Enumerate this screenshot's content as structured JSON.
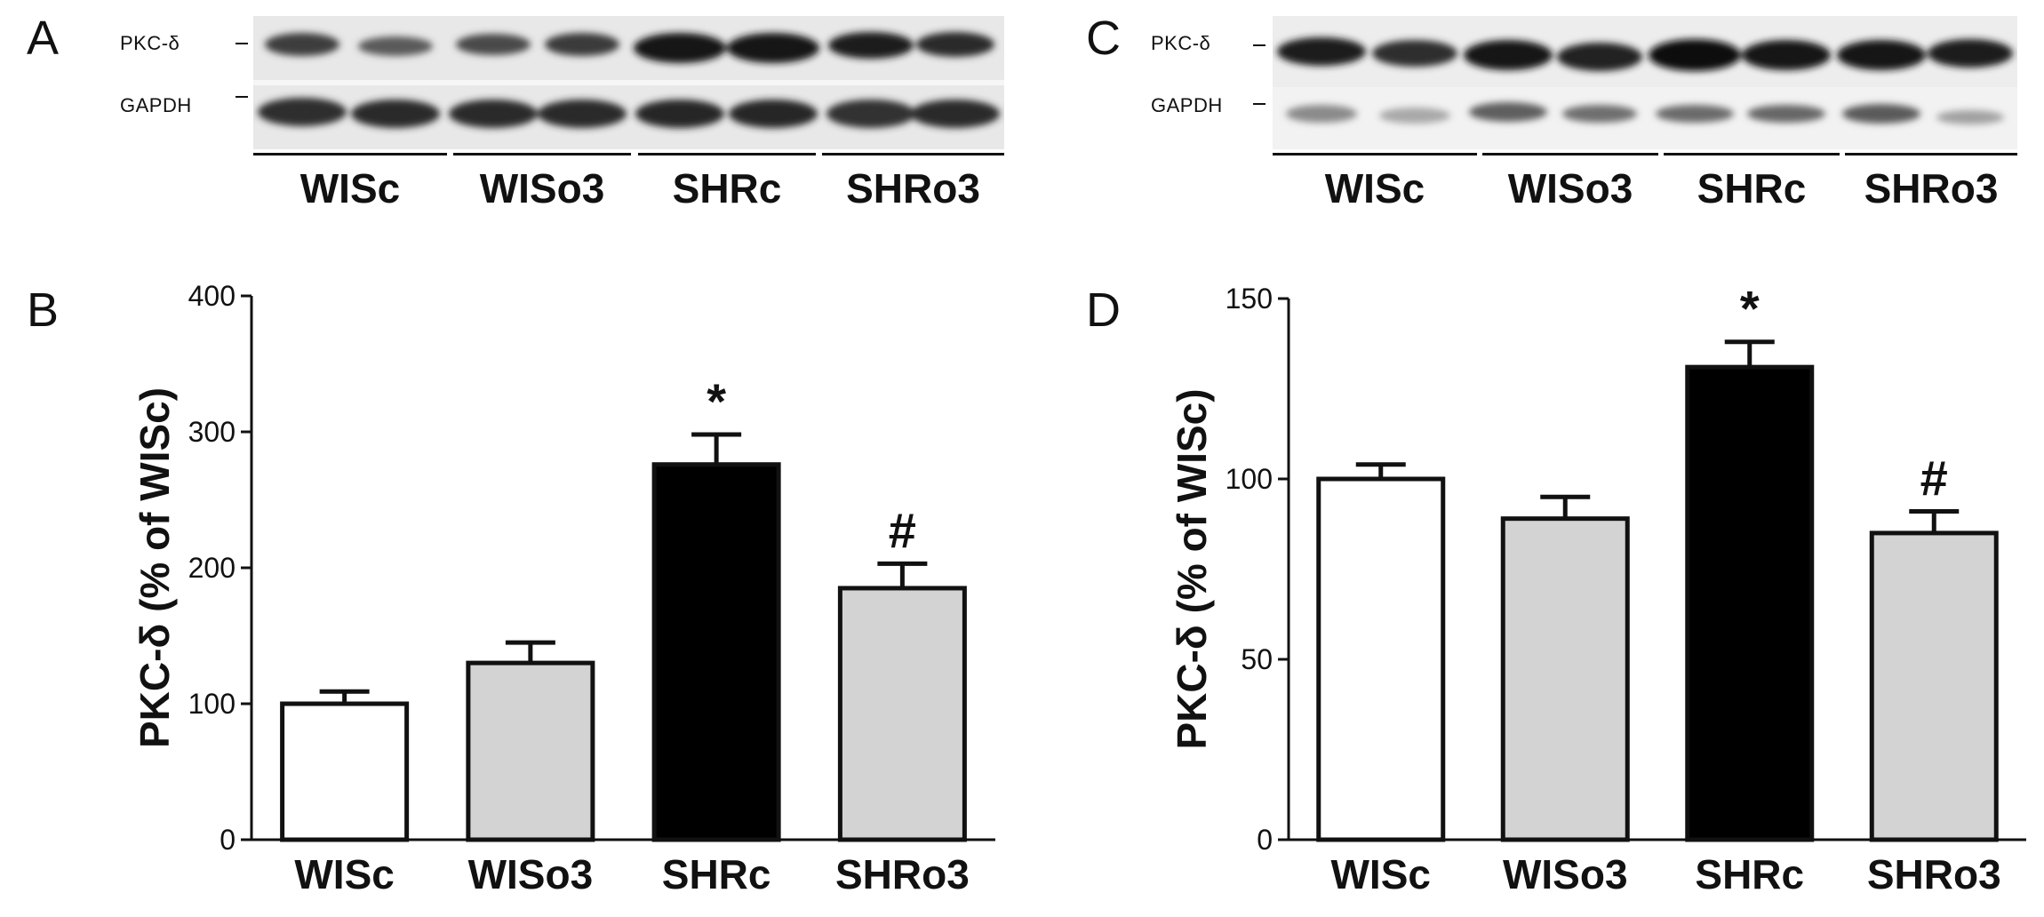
{
  "panels": {
    "A": {
      "letter": "A",
      "protein_label": "PKC-δ",
      "loading_label": "GAPDH",
      "groups": [
        "WISc",
        "WISo3",
        "SHRc",
        "SHRo3"
      ]
    },
    "C": {
      "letter": "C",
      "protein_label": "PKC-δ",
      "loading_label": "GAPDH",
      "groups": [
        "WISc",
        "WISo3",
        "SHRc",
        "SHRo3"
      ]
    },
    "B": {
      "letter": "B"
    },
    "D": {
      "letter": "D"
    }
  },
  "chart_data": [
    {
      "panel": "B",
      "type": "bar",
      "categories": [
        "WISc",
        "WISo3",
        "SHRc",
        "SHRo3"
      ],
      "values": [
        100,
        130,
        276,
        185
      ],
      "errors": [
        9,
        15,
        22,
        18
      ],
      "fills": [
        "#ffffff",
        "#d3d3d3",
        "#000000",
        "#d3d3d3"
      ],
      "annotations": [
        "",
        "",
        "*",
        "#"
      ],
      "ylabel": "PKC-δ (% of WISc)",
      "ylim": [
        0,
        400
      ],
      "yticks": [
        0,
        100,
        200,
        300,
        400
      ]
    },
    {
      "panel": "D",
      "type": "bar",
      "categories": [
        "WISc",
        "WISo3",
        "SHRc",
        "SHRo3"
      ],
      "values": [
        100,
        89,
        131,
        85
      ],
      "errors": [
        4,
        6,
        7,
        6
      ],
      "fills": [
        "#ffffff",
        "#d3d3d3",
        "#000000",
        "#d3d3d3"
      ],
      "annotations": [
        "",
        "",
        "*",
        "#"
      ],
      "ylabel": "PKC-δ (% of WISc)",
      "ylim": [
        0,
        150
      ],
      "yticks": [
        0,
        50,
        100,
        150
      ]
    }
  ]
}
